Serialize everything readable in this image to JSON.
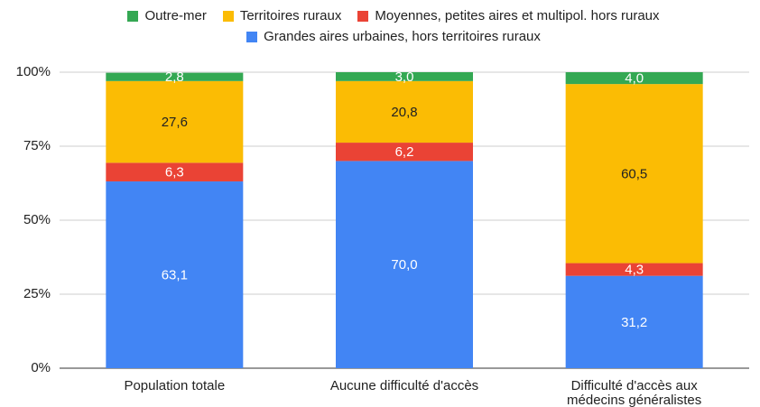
{
  "chart_data": {
    "type": "stacked_bar",
    "categories": [
      "Population totale",
      "Aucune difficulté d'accès",
      "Difficulté d'accès aux médecins généralistes"
    ],
    "series": [
      {
        "name": "Outre-mer",
        "color": "#34a853",
        "values": [
          2.8,
          3.0,
          4.0
        ],
        "value_labels": [
          "2,8",
          "3,0",
          "4,0"
        ]
      },
      {
        "name": "Territoires ruraux",
        "color": "#fbbc04",
        "values": [
          27.6,
          20.8,
          60.5
        ],
        "value_labels": [
          "27,6",
          "20,8",
          "60,5"
        ]
      },
      {
        "name": "Moyennes, petites aires et multipol. hors ruraux",
        "color": "#ea4335",
        "values": [
          6.3,
          6.2,
          4.3
        ],
        "value_labels": [
          "6,3",
          "6,2",
          "4,3"
        ]
      },
      {
        "name": "Grandes aires urbaines, hors territoires ruraux",
        "color": "#4285f4",
        "values": [
          63.1,
          70.0,
          31.2
        ],
        "value_labels": [
          "63,1",
          "70,0",
          "31,2"
        ]
      }
    ],
    "ylim": [
      0,
      100
    ],
    "yticks": [
      {
        "value": 0,
        "label": "0%"
      },
      {
        "value": 25,
        "label": "25%"
      },
      {
        "value": 50,
        "label": "50%"
      },
      {
        "value": 75,
        "label": "75%"
      },
      {
        "value": 100,
        "label": "100%"
      }
    ],
    "grid": true,
    "legend": "top"
  }
}
